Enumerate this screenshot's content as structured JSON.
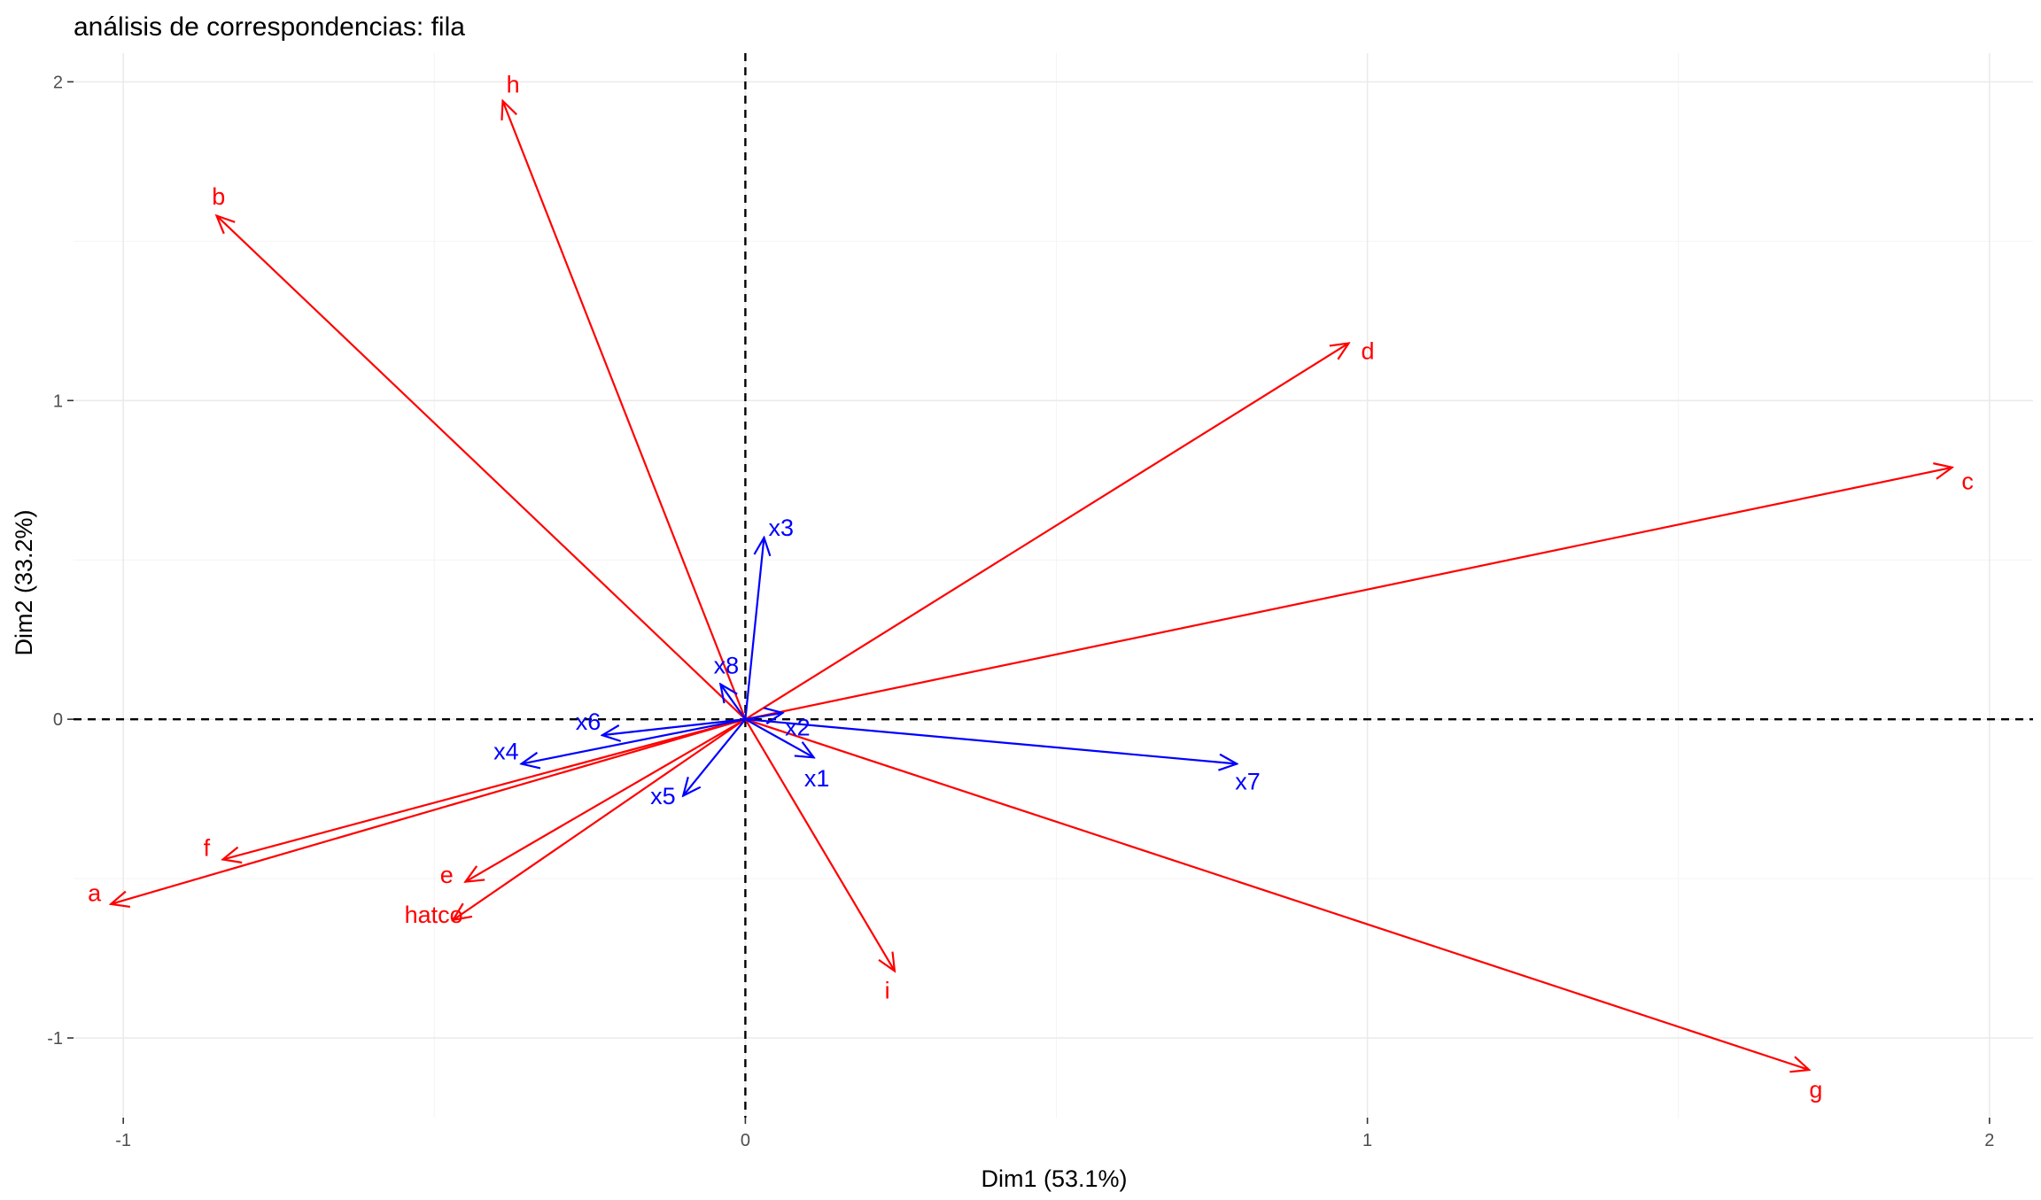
{
  "chart_data": {
    "type": "scatter",
    "title": "análisis de correspondencias: fila",
    "xlabel": "Dim1 (53.1%)",
    "ylabel": "Dim2 (33.2%)",
    "xlim": [
      -1.08,
      2.07
    ],
    "ylim": [
      -1.25,
      2.09
    ],
    "x_ticks": [
      -1,
      0,
      1,
      2
    ],
    "x_tick_labels": [
      "-1",
      "0",
      "1",
      "2"
    ],
    "y_ticks": [
      -1,
      0,
      1,
      2
    ],
    "y_tick_labels": [
      "-1",
      "0",
      "1",
      "2"
    ],
    "grid": true,
    "reference_lines": {
      "x": 0,
      "y": 0,
      "style": "dashed"
    },
    "colors": {
      "rows": "#ff0000",
      "columns": "#0000ff"
    },
    "series": [
      {
        "group": "rows",
        "color": "#ff0000",
        "points": [
          {
            "label": "a",
            "x": -1.02,
            "y": -0.58
          },
          {
            "label": "b",
            "x": -0.85,
            "y": 1.58
          },
          {
            "label": "c",
            "x": 1.94,
            "y": 0.79
          },
          {
            "label": "d",
            "x": 0.97,
            "y": 1.18
          },
          {
            "label": "e",
            "x": -0.45,
            "y": -0.51
          },
          {
            "label": "f",
            "x": -0.84,
            "y": -0.44
          },
          {
            "label": "g",
            "x": 1.71,
            "y": -1.1
          },
          {
            "label": "h",
            "x": -0.39,
            "y": 1.94
          },
          {
            "label": "i",
            "x": 0.24,
            "y": -0.79
          },
          {
            "label": "hatco",
            "x": -0.47,
            "y": -0.63
          }
        ]
      },
      {
        "group": "columns",
        "color": "#0000ff",
        "points": [
          {
            "label": "x1",
            "x": 0.11,
            "y": -0.12
          },
          {
            "label": "x2",
            "x": 0.06,
            "y": 0.02
          },
          {
            "label": "x3",
            "x": 0.03,
            "y": 0.57
          },
          {
            "label": "x4",
            "x": -0.36,
            "y": -0.14
          },
          {
            "label": "x5",
            "x": -0.1,
            "y": -0.24
          },
          {
            "label": "x6",
            "x": -0.23,
            "y": -0.05
          },
          {
            "label": "x7",
            "x": 0.79,
            "y": -0.14
          },
          {
            "label": "x8",
            "x": -0.04,
            "y": 0.11
          }
        ]
      }
    ]
  }
}
